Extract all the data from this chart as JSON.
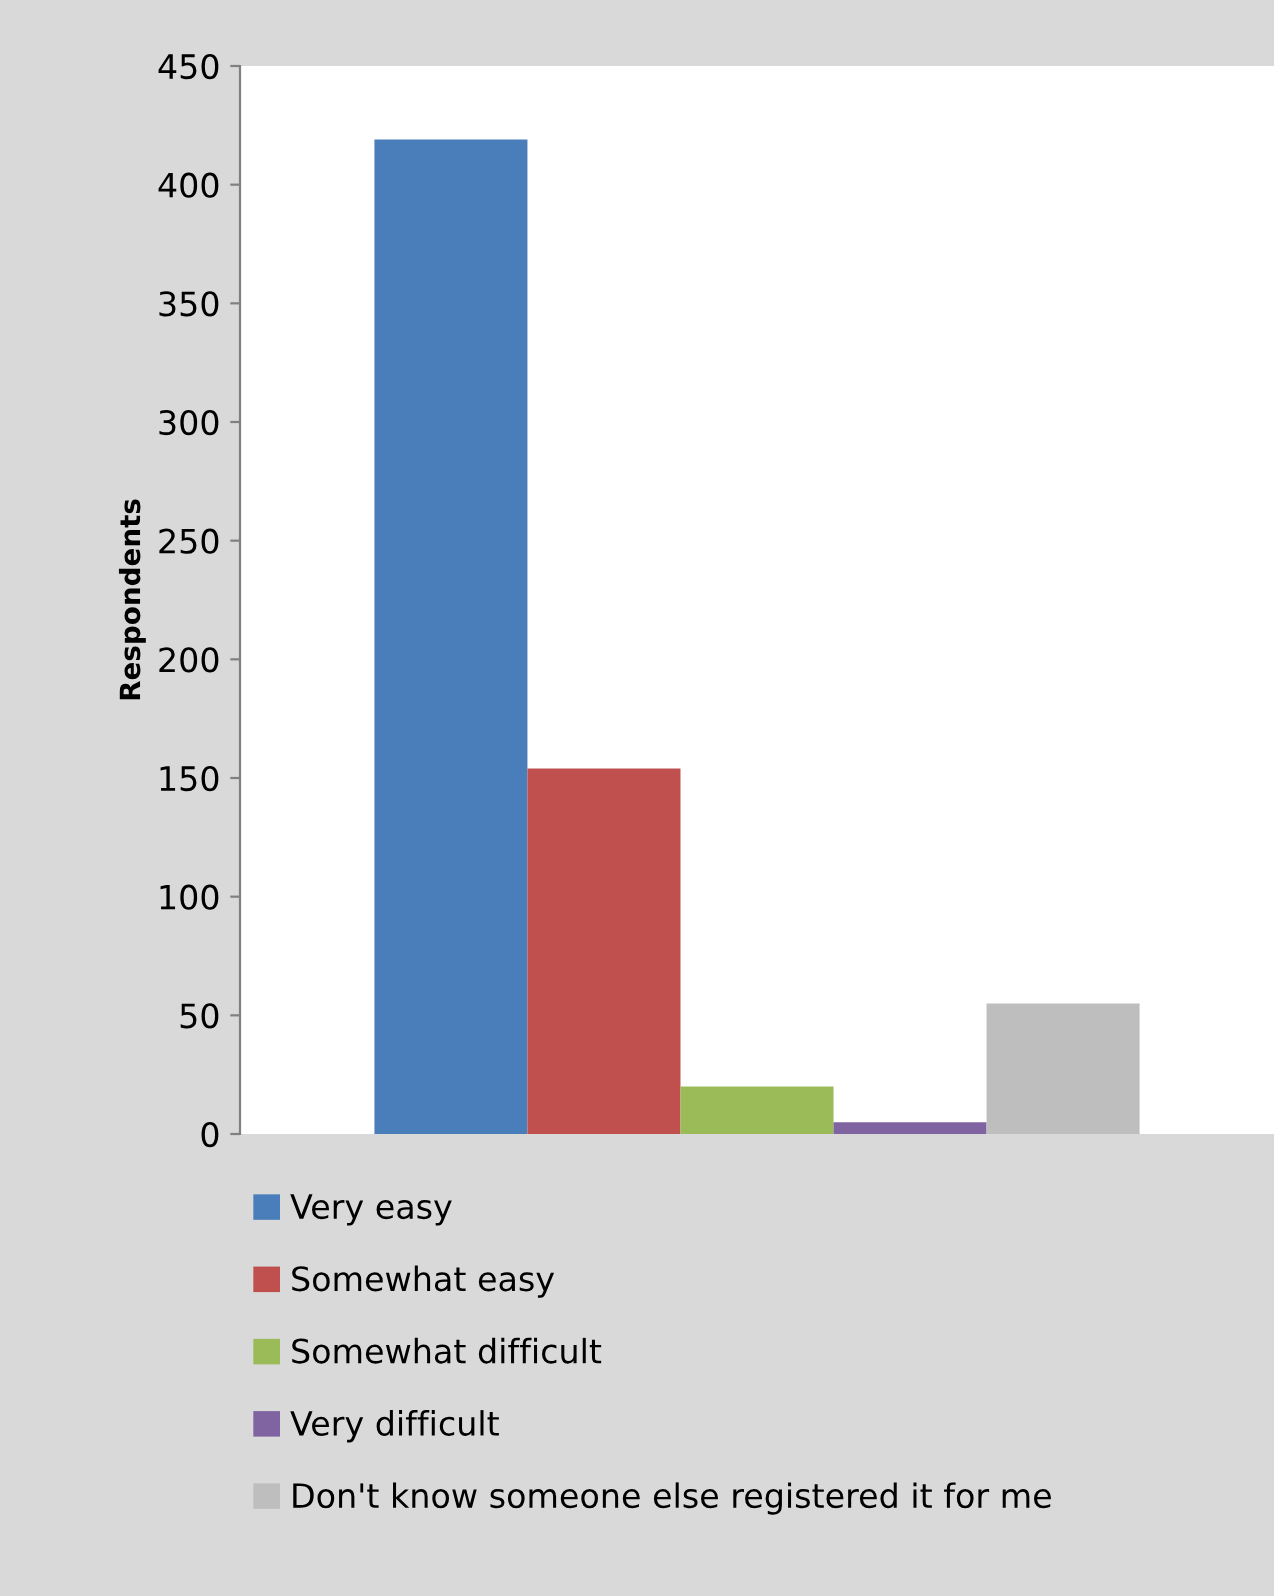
{
  "chart_data": {
    "type": "bar",
    "ylabel": "Respondents",
    "categories": [
      null
    ],
    "series": [
      {
        "name": "Very easy",
        "color": "#4a7ebb",
        "values": [
          419
        ]
      },
      {
        "name": "Somewhat easy",
        "color": "#c0504d",
        "values": [
          154
        ]
      },
      {
        "name": "Somewhat difficult",
        "color": "#9bbb59",
        "values": [
          20
        ]
      },
      {
        "name": "Very difficult",
        "color": "#8064a2",
        "values": [
          5
        ]
      },
      {
        "name": "Don't know someone else registered it for me",
        "color": "#bebebe",
        "values": [
          55
        ]
      }
    ],
    "ylim": [
      0,
      450
    ],
    "yticks": [
      0,
      50,
      100,
      150,
      200,
      250,
      300,
      350,
      400,
      450
    ],
    "grid": false,
    "legend": "bottom"
  }
}
